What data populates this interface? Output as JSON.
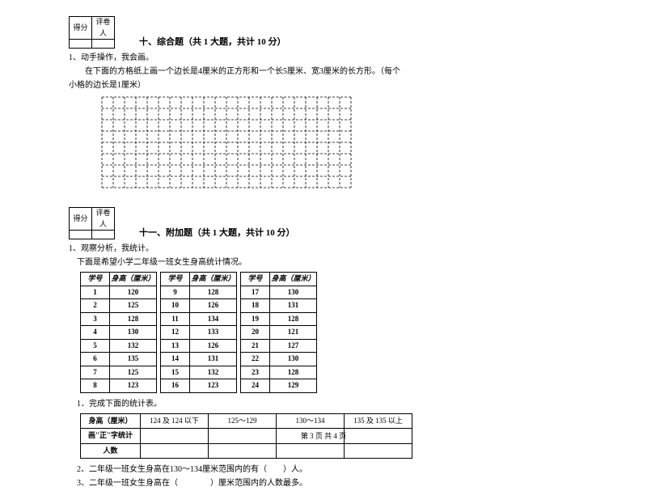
{
  "scorebox": {
    "col1": "得分",
    "col2": "评卷人"
  },
  "section10": {
    "title": "十、综合题（共 1 大题，共计 10 分）",
    "q1": "1、动手操作，我会画。",
    "q1desc1": "在下面的方格纸上画一个边长是4厘米的正方形和一个长5厘米、宽3厘米的长方形。（每个",
    "q1desc2": "小格的边长是1厘米）",
    "grid": {
      "cols": 22,
      "rows": 8,
      "cell": 14,
      "dash": "3,2",
      "stroke": "#000000"
    }
  },
  "section11": {
    "title": "十一、附加题（共 1 大题，共计 10 分）",
    "q1": "1、观察分析，我统计。",
    "q1desc": "下面是希望小学二年级一班女生身高统计情况。",
    "headers": {
      "id": "学号",
      "h": "身高（厘米）"
    },
    "tableA": [
      [
        "1",
        "120"
      ],
      [
        "2",
        "125"
      ],
      [
        "3",
        "128"
      ],
      [
        "4",
        "130"
      ],
      [
        "5",
        "132"
      ],
      [
        "6",
        "135"
      ],
      [
        "7",
        "125"
      ],
      [
        "8",
        "123"
      ]
    ],
    "tableB": [
      [
        "9",
        "128"
      ],
      [
        "10",
        "126"
      ],
      [
        "11",
        "134"
      ],
      [
        "12",
        "133"
      ],
      [
        "13",
        "126"
      ],
      [
        "14",
        "131"
      ],
      [
        "15",
        "132"
      ],
      [
        "16",
        "123"
      ]
    ],
    "tableC": [
      [
        "17",
        "130"
      ],
      [
        "18",
        "131"
      ],
      [
        "19",
        "128"
      ],
      [
        "20",
        "121"
      ],
      [
        "21",
        "127"
      ],
      [
        "22",
        "130"
      ],
      [
        "23",
        "128"
      ],
      [
        "24",
        "129"
      ]
    ],
    "sub1": "1．完成下面的统计表。",
    "summary": {
      "row1": "身高（厘米）",
      "row2": "画\"正\"字统计",
      "row3": "人数",
      "cols": [
        "124 及 124 以下",
        "125～129",
        "130～134",
        "135 及 135 以上"
      ]
    },
    "sub2": "2、二年级一班女生身高在130～134厘米范围内的有（　　）人。",
    "sub3": "3、二年级一班女生身高在（　　　　）厘米范围内的人数最多。"
  },
  "pageno": "第 3 页 共 4 页"
}
